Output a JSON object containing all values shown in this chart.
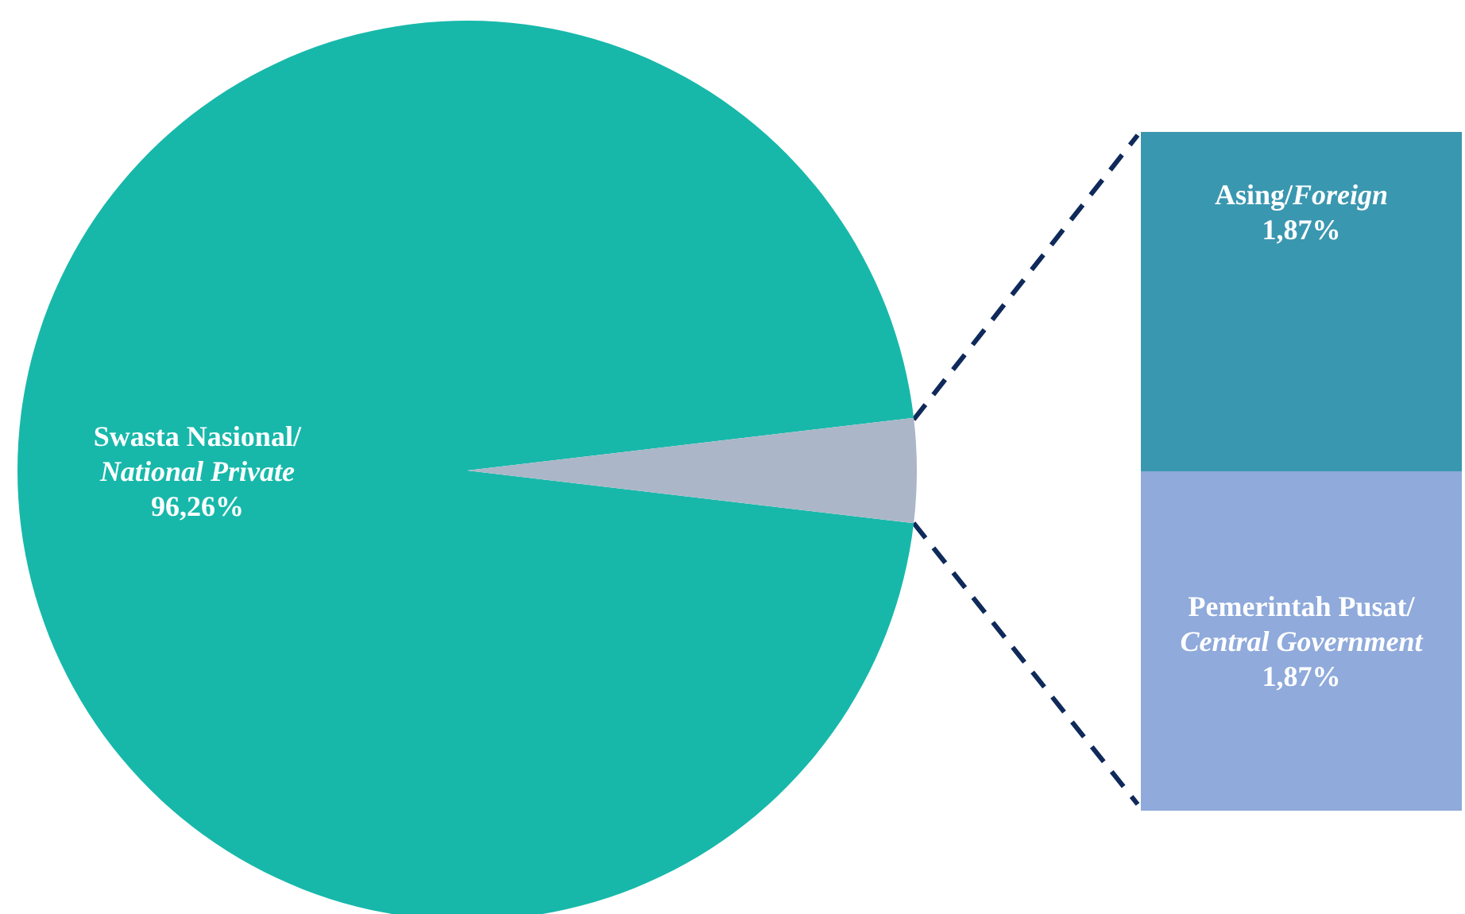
{
  "chart_data": [
    {
      "type": "pie",
      "categories": [
        "Swasta Nasional/National Private",
        null
      ],
      "values": [
        96.26,
        3.74
      ],
      "colors": [
        "#17b8aa",
        "#abb6c8"
      ],
      "value_labels": [
        "96,26%",
        null
      ]
    },
    {
      "type": "bar",
      "stacked": true,
      "categories": [
        null
      ],
      "series": [
        {
          "name": "Pemerintah Pusat/Central Government",
          "color": "#8faadb",
          "values": [
            1.87
          ],
          "value_labels": [
            "1,87%"
          ]
        },
        {
          "name": "Asing/Foreign",
          "color": "#3a97b0",
          "values": [
            1.87
          ],
          "value_labels": [
            "1,87%"
          ]
        }
      ]
    }
  ]
}
